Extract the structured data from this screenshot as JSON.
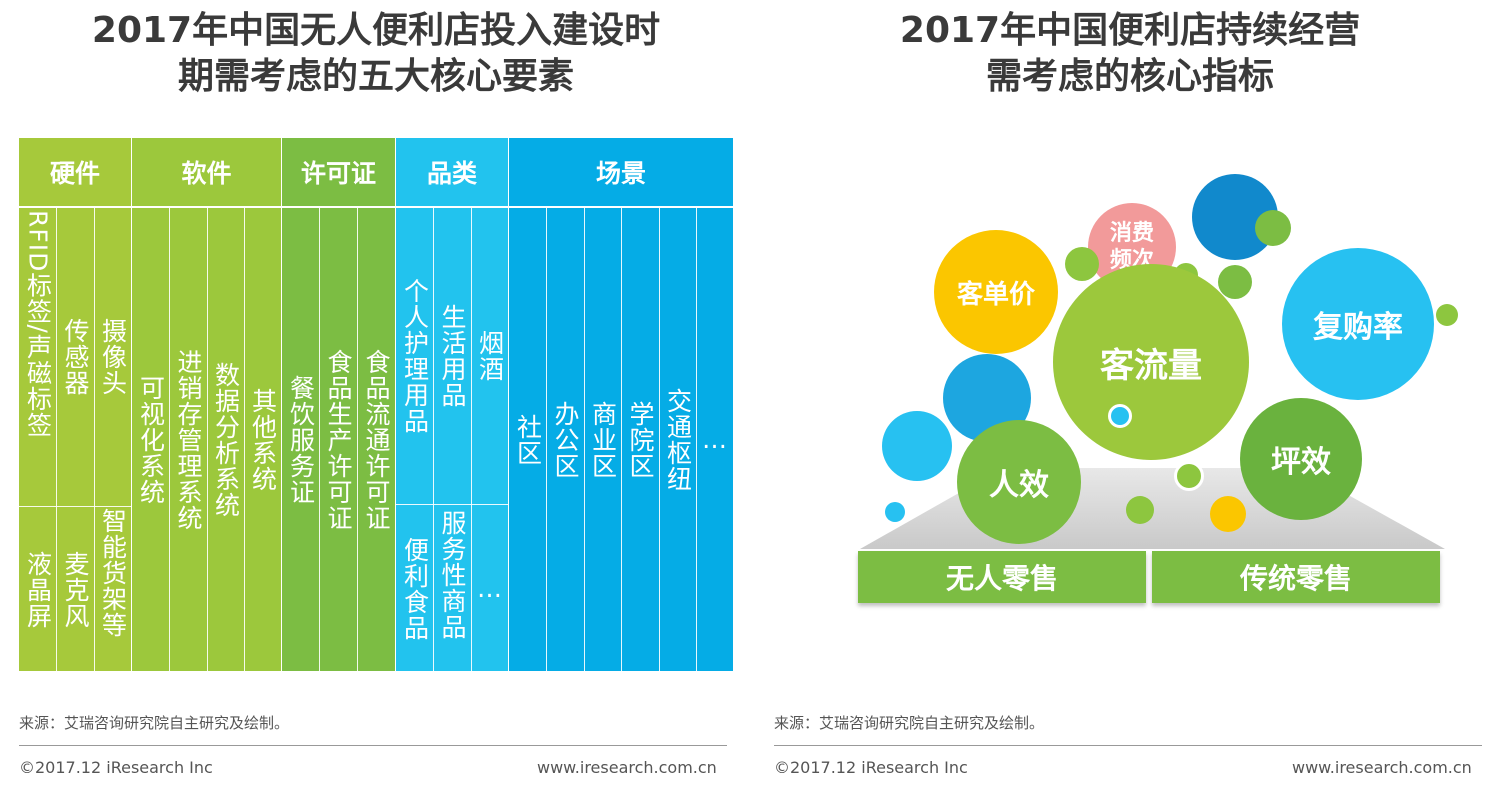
{
  "left": {
    "title_line1": "2017年中国无人便利店投入建设时",
    "title_line2": "期需考虑的五大核心要素",
    "headers": [
      "硬件",
      "软件",
      "许可证",
      "品类",
      "场景"
    ],
    "hardware": {
      "top": [
        "RFID标签/声磁标签",
        "传感器",
        "摄像头"
      ],
      "bottom": [
        "液晶屏",
        "麦克风",
        "智能货架等"
      ]
    },
    "software": [
      "可视化系统",
      "进销存管理系统",
      "数据分析系统",
      "其他系统"
    ],
    "license": [
      "餐饮服务证",
      "食品生产许可证",
      "食品流通许可证"
    ],
    "category": {
      "top": [
        "个人护理用品",
        "生活用品",
        "烟酒"
      ],
      "bottom": [
        "便利食品",
        "服务性商品",
        "…"
      ]
    },
    "scene": [
      "社区",
      "办公区",
      "商业区",
      "学院区",
      "交通枢纽",
      "…"
    ],
    "source": "来源：艾瑞咨询研究院自主研究及绘制。",
    "copyright": "©2017.12 iResearch Inc",
    "website": "www.iresearch.com.cn"
  },
  "right": {
    "title_line1": "2017年中国便利店持续经营",
    "title_line2": "需考虑的核心指标",
    "bubbles": {
      "center": "客流量",
      "unit_price": "客单价",
      "frequency": "消费频次",
      "repurchase": "复购率",
      "labor": "人效",
      "area": "坪效"
    },
    "base_left": "无人零售",
    "base_right": "传统零售",
    "source": "来源：艾瑞咨询研究院自主研究及绘制。",
    "copyright": "©2017.12 iResearch Inc",
    "website": "www.iresearch.com.cn"
  },
  "colors": {
    "hardware": "#a6c93b",
    "software": "#9cc83c",
    "license": "#7cbd43",
    "category": "#22c3ee",
    "scene": "#05ace6",
    "bubble_green": "#8dc63f",
    "bubble_dark_green": "#6ab23e",
    "bubble_yellow": "#fbc600",
    "bubble_pink": "#f29a9a",
    "bubble_blue": "#1da6e0",
    "bubble_light_blue": "#27c1f1",
    "base_green": "#7cbd43"
  }
}
